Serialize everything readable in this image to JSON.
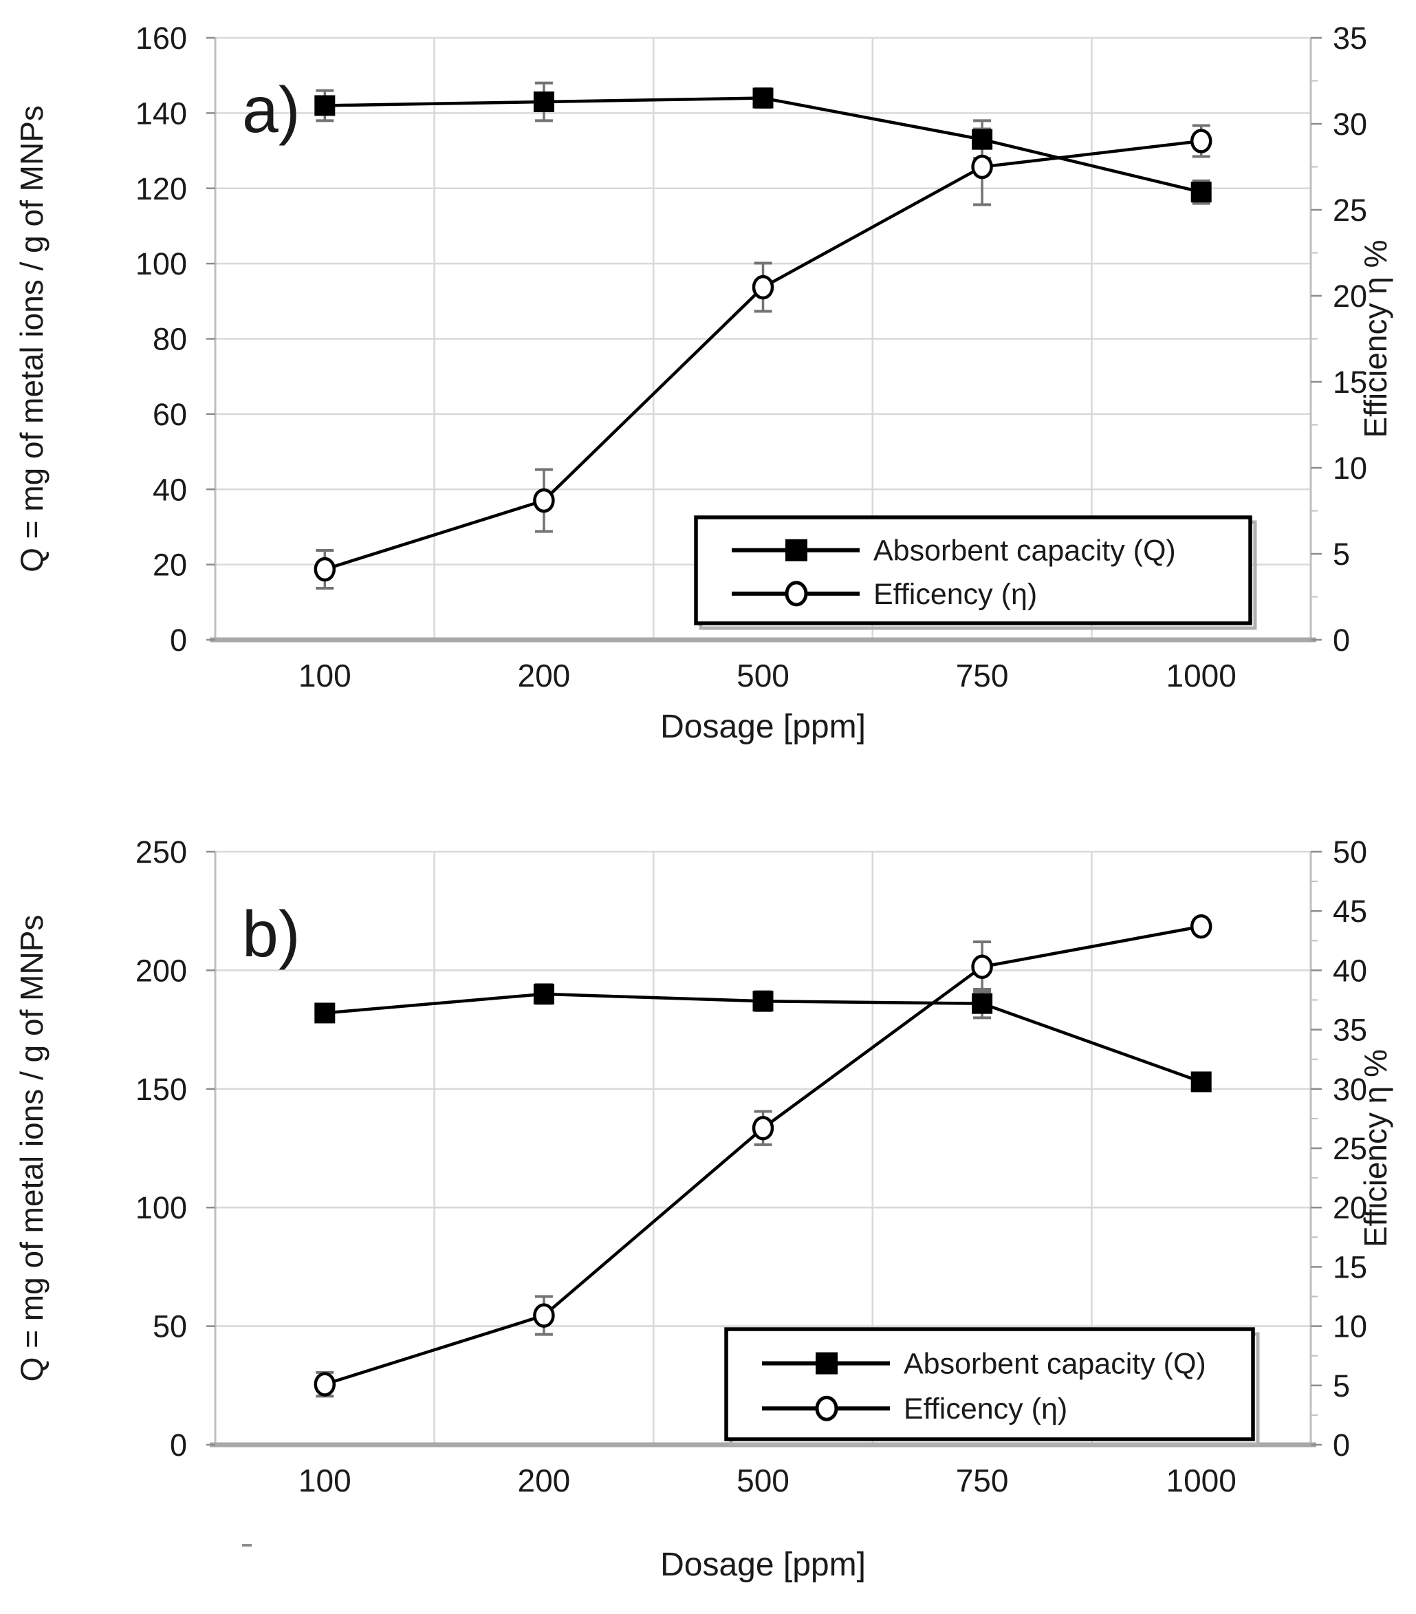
{
  "figure": {
    "background": "#ffffff",
    "description": "Two stacked dual-axis line charts of absorbent capacity and efficiency versus dosage"
  },
  "colors": {
    "series": "#000000",
    "grid": "#d9d9d9",
    "axis_line": "#a8a8a8",
    "spine": "#bfbfbf",
    "tick": "#8c8c8c",
    "error_bar": "#737373",
    "text": "#1a1a1a",
    "background": "#ffffff",
    "legend_border": "#000000",
    "legend_shadow": "#b0b0b0",
    "marker_fill_square": "#000000",
    "marker_fill_circle": "#ffffff"
  },
  "chart_data": [
    {
      "id": "a",
      "type": "line",
      "panel_label": "a)",
      "categories": [
        "100",
        "200",
        "500",
        "750",
        "1000"
      ],
      "xlabel": "Dosage [ppm]",
      "grid": true,
      "left_axis": {
        "label": "Q = mg of metal ions / g of MNPs",
        "min": 0,
        "max": 160,
        "step": 20,
        "ticks": [
          0,
          20,
          40,
          60,
          80,
          100,
          120,
          140,
          160
        ]
      },
      "right_axis": {
        "label": "Efficiency η %",
        "min": 0,
        "max": 35,
        "step": 5,
        "ticks": [
          0,
          5,
          10,
          15,
          20,
          25,
          30,
          35
        ]
      },
      "series": [
        {
          "name": "Absorbent capacity (Q)",
          "axis": "left",
          "marker": "filled-square",
          "values": [
            142,
            143,
            144,
            133,
            119
          ],
          "error_bars": [
            4,
            5,
            2.5,
            5,
            3
          ]
        },
        {
          "name": "Efficency (η)",
          "axis": "right",
          "marker": "open-circle",
          "values": [
            4.1,
            8.1,
            20.5,
            27.5,
            29
          ],
          "error_bars": [
            1.1,
            1.8,
            1.4,
            2.2,
            0.9
          ]
        }
      ],
      "legend": {
        "items": [
          "Absorbent capacity (Q)",
          "Efficency (η)"
        ],
        "position": "lower-right"
      }
    },
    {
      "id": "b",
      "type": "line",
      "panel_label": "b)",
      "categories": [
        "100",
        "200",
        "500",
        "750",
        "1000"
      ],
      "xlabel": "Dosage [ppm]",
      "grid": true,
      "left_axis": {
        "label": "Q = mg of metal ions / g of MNPs",
        "min": 0,
        "max": 250,
        "step": 50,
        "ticks": [
          0,
          50,
          100,
          150,
          200,
          250
        ]
      },
      "right_axis": {
        "label": "Efficiency η %",
        "min": 0,
        "max": 50,
        "step": 5,
        "ticks": [
          0,
          5,
          10,
          15,
          20,
          25,
          30,
          35,
          40,
          45,
          50
        ]
      },
      "series": [
        {
          "name": "Absorbent capacity (Q)",
          "axis": "left",
          "marker": "filled-square",
          "values": [
            182,
            190,
            187,
            186,
            153
          ],
          "error_bars": [
            3,
            4,
            4,
            6,
            2
          ]
        },
        {
          "name": "Efficency (η)",
          "axis": "right",
          "marker": "open-circle",
          "values": [
            5.1,
            10.9,
            26.7,
            40.3,
            43.7
          ],
          "error_bars": [
            1.0,
            1.6,
            1.4,
            2.1,
            0.5
          ]
        }
      ],
      "legend": {
        "items": [
          "Absorbent capacity (Q)",
          "Efficency (η)"
        ],
        "position": "lower-right"
      }
    }
  ]
}
